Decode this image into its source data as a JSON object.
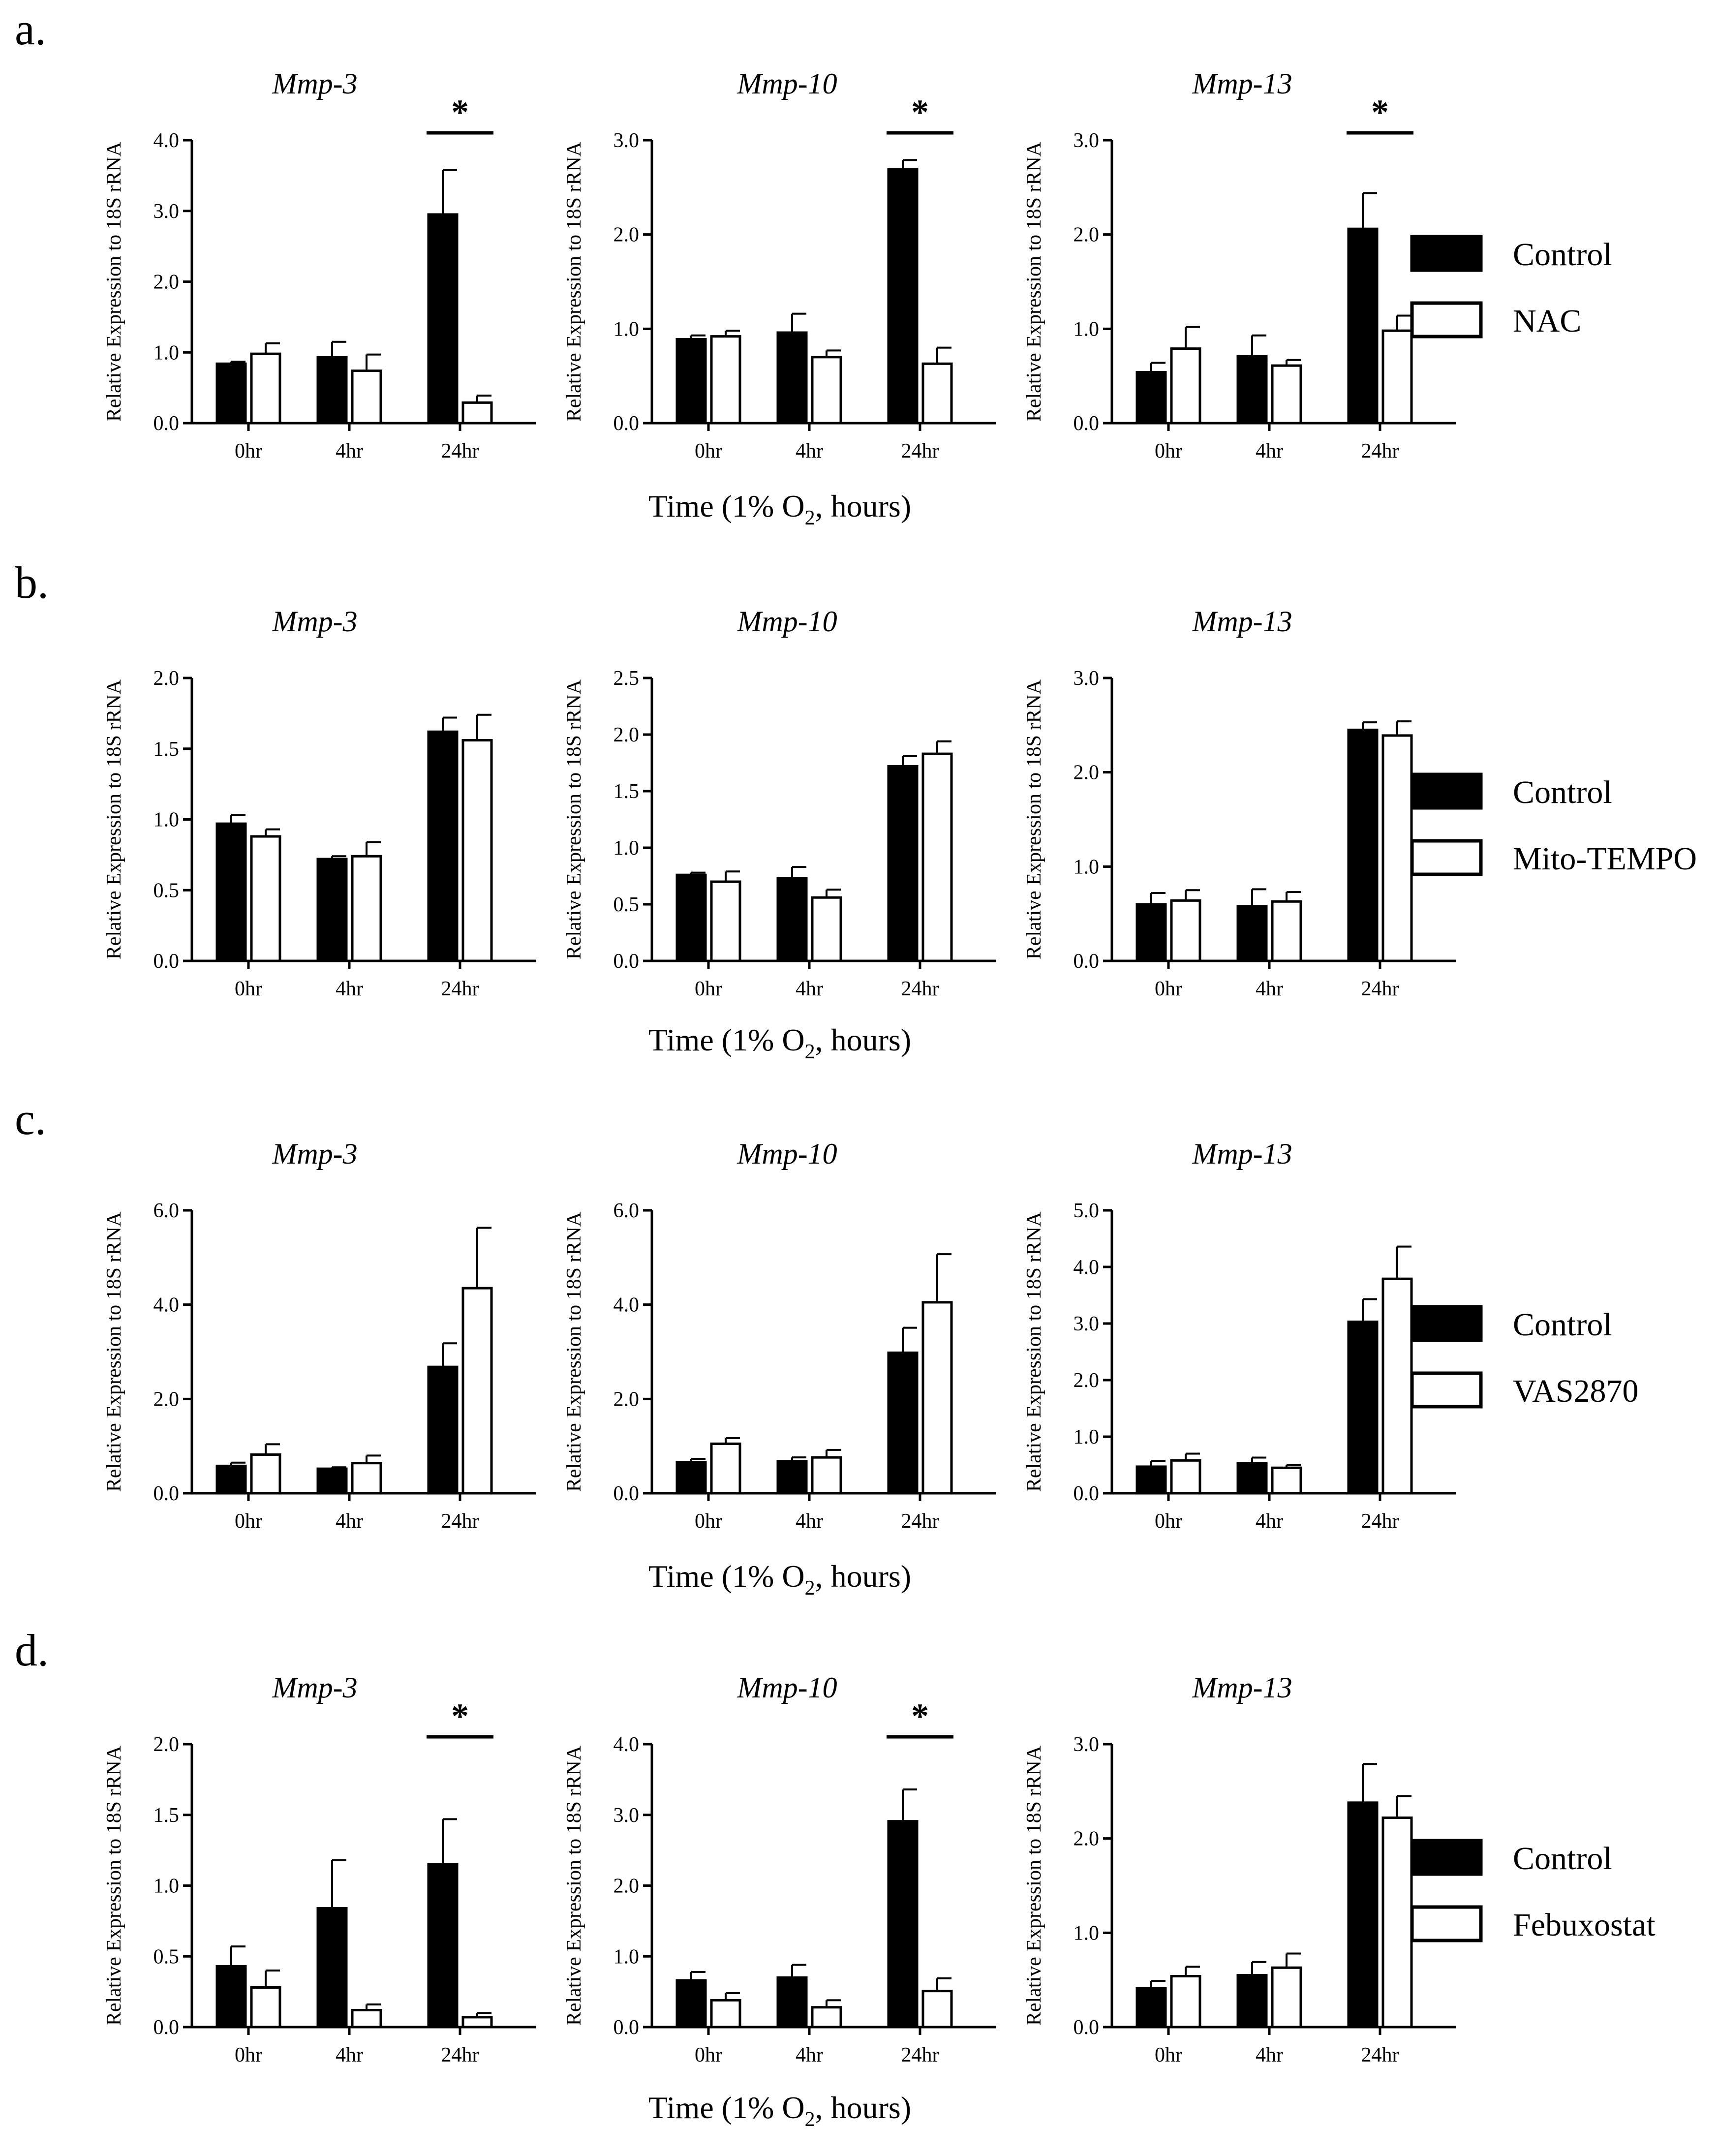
{
  "categories": [
    "0hr",
    "4hr",
    "24hr"
  ],
  "panels": [
    {
      "label": "a.",
      "time_label": {
        "before": "Time (1% O",
        "sub": "2",
        "after": ", hours)"
      },
      "legend": [
        "Control",
        "NAC"
      ],
      "charts": [
        {
          "type": "bar",
          "title": "Mmp-3",
          "ylabel": "Relative Expression to 18S rRNA",
          "ylim": [
            0,
            4.0
          ],
          "yticks": [
            0,
            1.0,
            2.0,
            3.0,
            4.0
          ],
          "ytick_labels": [
            "0.0",
            "1.0",
            "2.0",
            "3.0",
            "4.0"
          ],
          "series": [
            {
              "name": "Control",
              "values": [
                0.84,
                0.93,
                2.95
              ],
              "errors": [
                0.03,
                0.22,
                0.63
              ]
            },
            {
              "name": "NAC",
              "values": [
                0.98,
                0.74,
                0.29
              ],
              "errors": [
                0.15,
                0.23,
                0.1
              ]
            }
          ],
          "significance": [
            {
              "category": "24hr",
              "label": "*"
            }
          ]
        },
        {
          "type": "bar",
          "title": "Mmp-10",
          "ylabel": "Relative Expression to 18S rRNA",
          "ylim": [
            0,
            3.0
          ],
          "yticks": [
            0,
            1.0,
            2.0,
            3.0
          ],
          "ytick_labels": [
            "0.0",
            "1.0",
            "2.0",
            "3.0"
          ],
          "series": [
            {
              "name": "Control",
              "values": [
                0.89,
                0.96,
                2.69
              ],
              "errors": [
                0.04,
                0.2,
                0.1
              ]
            },
            {
              "name": "NAC",
              "values": [
                0.92,
                0.7,
                0.63
              ],
              "errors": [
                0.06,
                0.07,
                0.17
              ]
            }
          ],
          "significance": [
            {
              "category": "24hr",
              "label": "*"
            }
          ]
        },
        {
          "type": "bar",
          "title": "Mmp-13",
          "ylabel": "Relative Expression to 18S rRNA",
          "ylim": [
            0,
            3.0
          ],
          "yticks": [
            0,
            1.0,
            2.0,
            3.0
          ],
          "ytick_labels": [
            "0.0",
            "1.0",
            "2.0",
            "3.0"
          ],
          "series": [
            {
              "name": "Control",
              "values": [
                0.54,
                0.71,
                2.06
              ],
              "errors": [
                0.1,
                0.22,
                0.38
              ]
            },
            {
              "name": "NAC",
              "values": [
                0.79,
                0.61,
                0.98
              ],
              "errors": [
                0.23,
                0.06,
                0.16
              ]
            }
          ],
          "significance": [
            {
              "category": "24hr",
              "label": "*"
            }
          ]
        }
      ]
    },
    {
      "label": "b.",
      "time_label": {
        "before": "Time (1% O",
        "sub": "2",
        "after": ", hours)"
      },
      "legend": [
        "Control",
        "Mito-TEMPO"
      ],
      "charts": [
        {
          "type": "bar",
          "title": "Mmp-3",
          "ylabel": "Relative Expression to 18S rRNA",
          "ylim": [
            0,
            2.0
          ],
          "yticks": [
            0,
            0.5,
            1.0,
            1.5,
            2.0
          ],
          "ytick_labels": [
            "0.0",
            "0.5",
            "1.0",
            "1.5",
            "2.0"
          ],
          "series": [
            {
              "name": "Control",
              "values": [
                0.97,
                0.72,
                1.62
              ],
              "errors": [
                0.06,
                0.02,
                0.1
              ]
            },
            {
              "name": "Mito-TEMPO",
              "values": [
                0.88,
                0.74,
                1.56
              ],
              "errors": [
                0.05,
                0.1,
                0.18
              ]
            }
          ],
          "significance": []
        },
        {
          "type": "bar",
          "title": "Mmp-10",
          "ylabel": "Relative Expression to 18S rRNA",
          "ylim": [
            0,
            2.5
          ],
          "yticks": [
            0,
            0.5,
            1.0,
            1.5,
            2.0,
            2.5
          ],
          "ytick_labels": [
            "0.0",
            "0.5",
            "1.0",
            "1.5",
            "2.0",
            "2.5"
          ],
          "series": [
            {
              "name": "Control",
              "values": [
                0.76,
                0.73,
                1.72
              ],
              "errors": [
                0.02,
                0.1,
                0.09
              ]
            },
            {
              "name": "Mito-TEMPO",
              "values": [
                0.7,
                0.56,
                1.83
              ],
              "errors": [
                0.09,
                0.07,
                0.11
              ]
            }
          ],
          "significance": []
        },
        {
          "type": "bar",
          "title": "Mmp-13",
          "ylabel": "Relative Expression to 18S rRNA",
          "ylim": [
            0,
            3.0
          ],
          "yticks": [
            0,
            1.0,
            2.0,
            3.0
          ],
          "ytick_labels": [
            "0.0",
            "1.0",
            "2.0",
            "3.0"
          ],
          "series": [
            {
              "name": "Control",
              "values": [
                0.6,
                0.58,
                2.45
              ],
              "errors": [
                0.12,
                0.18,
                0.08
              ]
            },
            {
              "name": "Mito-TEMPO",
              "values": [
                0.64,
                0.63,
                2.39
              ],
              "errors": [
                0.11,
                0.1,
                0.15
              ]
            }
          ],
          "significance": []
        }
      ]
    },
    {
      "label": "c.",
      "time_label": {
        "before": "Time (1% O",
        "sub": "2",
        "after": ", hours)"
      },
      "legend": [
        "Control",
        "VAS2870"
      ],
      "charts": [
        {
          "type": "bar",
          "title": "Mmp-3",
          "ylabel": "Relative Expression to 18S rRNA",
          "ylim": [
            0,
            6.0
          ],
          "yticks": [
            0,
            2.0,
            4.0,
            6.0
          ],
          "ytick_labels": [
            "0.0",
            "2.0",
            "4.0",
            "6.0"
          ],
          "series": [
            {
              "name": "Control",
              "values": [
                0.58,
                0.52,
                2.68
              ],
              "errors": [
                0.07,
                0.03,
                0.5
              ]
            },
            {
              "name": "VAS2870",
              "values": [
                0.82,
                0.64,
                4.35
              ],
              "errors": [
                0.22,
                0.16,
                1.28
              ]
            }
          ],
          "significance": []
        },
        {
          "type": "bar",
          "title": "Mmp-10",
          "ylabel": "Relative Expression to 18S rRNA",
          "ylim": [
            0,
            6.0
          ],
          "yticks": [
            0,
            2.0,
            4.0,
            6.0
          ],
          "ytick_labels": [
            "0.0",
            "2.0",
            "4.0",
            "6.0"
          ],
          "series": [
            {
              "name": "Control",
              "values": [
                0.66,
                0.68,
                2.98
              ],
              "errors": [
                0.07,
                0.08,
                0.53
              ]
            },
            {
              "name": "VAS2870",
              "values": [
                1.05,
                0.76,
                4.05
              ],
              "errors": [
                0.12,
                0.16,
                1.02
              ]
            }
          ],
          "significance": []
        },
        {
          "type": "bar",
          "title": "Mmp-13",
          "ylabel": "Relative Expression to 18S rRNA",
          "ylim": [
            0,
            5.0
          ],
          "yticks": [
            0,
            1.0,
            2.0,
            3.0,
            4.0,
            5.0
          ],
          "ytick_labels": [
            "0.0",
            "1.0",
            "2.0",
            "3.0",
            "4.0",
            "5.0"
          ],
          "series": [
            {
              "name": "Control",
              "values": [
                0.47,
                0.53,
                3.03
              ],
              "errors": [
                0.1,
                0.1,
                0.4
              ]
            },
            {
              "name": "VAS2870",
              "values": [
                0.58,
                0.45,
                3.79
              ],
              "errors": [
                0.12,
                0.05,
                0.57
              ]
            }
          ],
          "significance": []
        }
      ]
    },
    {
      "label": "d.",
      "time_label": {
        "before": "Time (1% O",
        "sub": "2",
        "after": ", hours)"
      },
      "legend": [
        "Control",
        "Febuxostat"
      ],
      "charts": [
        {
          "type": "bar",
          "title": "Mmp-3",
          "ylabel": "Relative Expression to 18S rRNA",
          "ylim": [
            0,
            2.0
          ],
          "yticks": [
            0,
            0.5,
            1.0,
            1.5,
            2.0
          ],
          "ytick_labels": [
            "0.0",
            "0.5",
            "1.0",
            "1.5",
            "2.0"
          ],
          "series": [
            {
              "name": "Control",
              "values": [
                0.43,
                0.84,
                1.15
              ],
              "errors": [
                0.14,
                0.34,
                0.32
              ]
            },
            {
              "name": "Febuxostat",
              "values": [
                0.28,
                0.12,
                0.07
              ],
              "errors": [
                0.12,
                0.04,
                0.03
              ]
            }
          ],
          "significance": [
            {
              "category": "24hr",
              "label": "*"
            }
          ]
        },
        {
          "type": "bar",
          "title": "Mmp-10",
          "ylabel": "Relative Expression to 18S rRNA",
          "ylim": [
            0,
            4.0
          ],
          "yticks": [
            0,
            1.0,
            2.0,
            3.0,
            4.0
          ],
          "ytick_labels": [
            "0.0",
            "1.0",
            "2.0",
            "3.0",
            "4.0"
          ],
          "series": [
            {
              "name": "Control",
              "values": [
                0.66,
                0.7,
                2.91
              ],
              "errors": [
                0.12,
                0.18,
                0.45
              ]
            },
            {
              "name": "Febuxostat",
              "values": [
                0.38,
                0.28,
                0.51
              ],
              "errors": [
                0.1,
                0.1,
                0.18
              ]
            }
          ],
          "significance": [
            {
              "category": "24hr",
              "label": "*"
            }
          ]
        },
        {
          "type": "bar",
          "title": "Mmp-13",
          "ylabel": "Relative Expression to 18S rRNA",
          "ylim": [
            0,
            3.0
          ],
          "yticks": [
            0,
            1.0,
            2.0,
            3.0
          ],
          "ytick_labels": [
            "0.0",
            "1.0",
            "2.0",
            "3.0"
          ],
          "series": [
            {
              "name": "Control",
              "values": [
                0.41,
                0.55,
                2.38
              ],
              "errors": [
                0.08,
                0.14,
                0.41
              ]
            },
            {
              "name": "Febuxostat",
              "values": [
                0.54,
                0.63,
                2.22
              ],
              "errors": [
                0.1,
                0.15,
                0.23
              ]
            }
          ],
          "significance": []
        }
      ]
    }
  ]
}
